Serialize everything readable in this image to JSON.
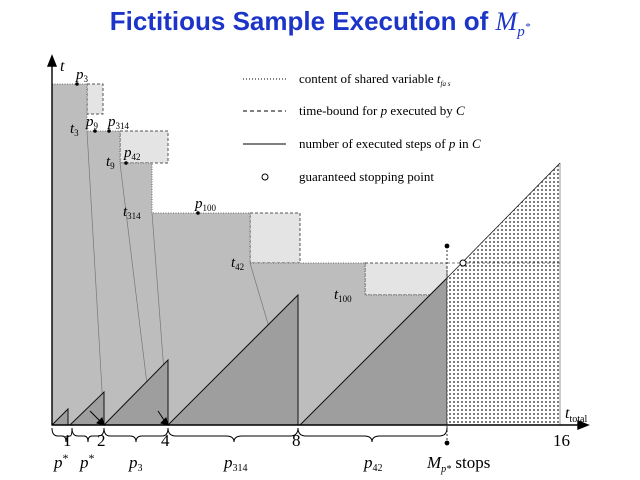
{
  "title": {
    "text": "Fictitious Sample Execution of ",
    "math_base": "M",
    "math_sub": "p",
    "math_sup": "*"
  },
  "axes": {
    "y_label": "t",
    "x_label_base": "t",
    "x_label_sub": "total"
  },
  "legend": {
    "items": [
      {
        "style": "dotted",
        "text_before": "content of shared variable ",
        "math": "t",
        "math_sub": "fa s"
      },
      {
        "style": "dashed",
        "text_before": "time-bound for ",
        "math": "p",
        "text_mid": " executed by ",
        "math2": "C"
      },
      {
        "style": "solid",
        "text_before": "number of executed steps of ",
        "math": "p",
        "text_mid": " in ",
        "math2": "C"
      },
      {
        "style": "circle",
        "text_before": "guaranteed stopping point"
      }
    ]
  },
  "x_ticks": [
    "1",
    "2",
    "4",
    "8",
    "16"
  ],
  "brace_labels": [
    {
      "base": "p",
      "sup": "*"
    },
    {
      "base": "p",
      "sup": "*"
    },
    {
      "base": "p",
      "sub": "3"
    },
    {
      "base": "p",
      "sub": "314"
    },
    {
      "base": "p",
      "sub": "42"
    }
  ],
  "stop_label": {
    "base": "M",
    "sub": "p*",
    "text": " stops"
  },
  "p_labels": [
    {
      "base": "p",
      "sub": "3"
    },
    {
      "base": "p",
      "sub": "9"
    },
    {
      "base": "p",
      "sub": "314"
    },
    {
      "base": "p",
      "sub": "42"
    },
    {
      "base": "p",
      "sub": "100"
    }
  ],
  "t_labels": [
    {
      "base": "t",
      "sub": "3"
    },
    {
      "base": "t",
      "sub": "9"
    },
    {
      "base": "t",
      "sub": "314"
    },
    {
      "base": "t",
      "sub": "42"
    },
    {
      "base": "t",
      "sub": "100"
    }
  ],
  "colors": {
    "title": "#1c35c8",
    "area_dark": "#bdbdbd",
    "area_light": "#e4e4e4",
    "triangle": "#9e9e9e"
  }
}
